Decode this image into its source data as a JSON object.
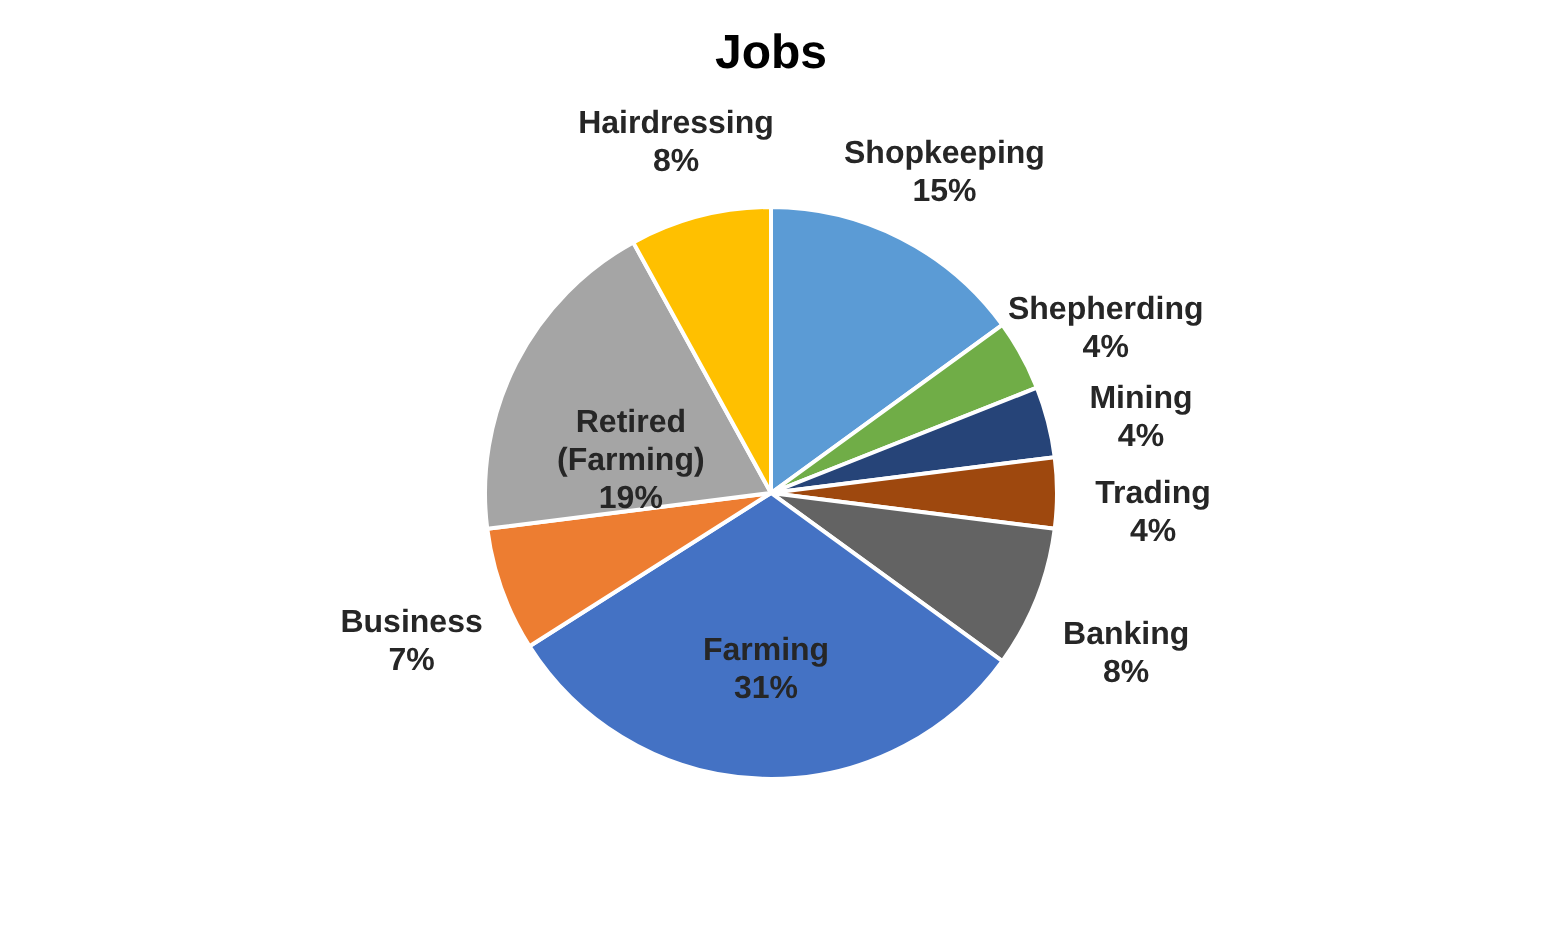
{
  "chart_data": {
    "type": "pie",
    "title": "Jobs",
    "categories": [
      "Shopkeeping",
      "Shepherding",
      "Mining",
      "Trading",
      "Banking",
      "Farming",
      "Business",
      "Retired (Farming)",
      "Hairdressing"
    ],
    "values": [
      15,
      4,
      4,
      4,
      8,
      31,
      7,
      19,
      8
    ],
    "value_labels": [
      "15%",
      "4%",
      "4%",
      "4%",
      "8%",
      "31%",
      "7%",
      "19%",
      "8%"
    ],
    "colors": [
      "#5b9bd5",
      "#70ad47",
      "#264478",
      "#9e480e",
      "#636363",
      "#4472c4",
      "#ed7d31",
      "#a5a5a5",
      "#ffc000"
    ],
    "legend": false
  }
}
